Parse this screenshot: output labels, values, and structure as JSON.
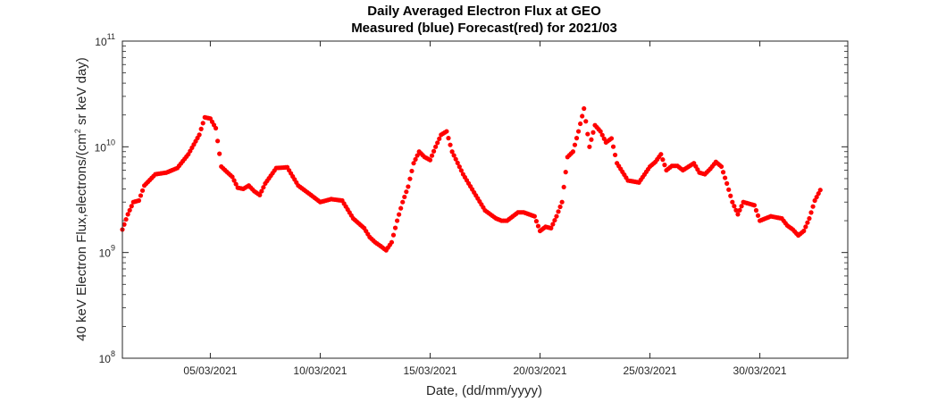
{
  "chart_data": {
    "type": "scatter",
    "title": "Daily Averaged Electron Flux at GEO",
    "subtitle": "Measured (blue) Forecast(red) for 2021/03",
    "xlabel": "Date, (dd/mm/yyyy)",
    "ylabel_main": "40 keV Electron Flux,electrons/(cm",
    "ylabel_sup": "2",
    "ylabel_tail": " sr keV day)",
    "xlim": [
      "2021-03-01T00:00",
      "2021-04-03T00:00"
    ],
    "ylim": [
      100000000,
      100000000000
    ],
    "yscale": "log",
    "grid": false,
    "x_ticks": [
      {
        "date": "2021-03-05",
        "label": "05/03/2021"
      },
      {
        "date": "2021-03-10",
        "label": "10/03/2021"
      },
      {
        "date": "2021-03-15",
        "label": "15/03/2021"
      },
      {
        "date": "2021-03-20",
        "label": "20/03/2021"
      },
      {
        "date": "2021-03-25",
        "label": "25/03/2021"
      },
      {
        "date": "2021-03-30",
        "label": "30/03/2021"
      }
    ],
    "y_ticks": [
      {
        "value": 100000000,
        "base": "10",
        "exp": "8"
      },
      {
        "value": 1000000000,
        "base": "10",
        "exp": "9"
      },
      {
        "value": 10000000000,
        "base": "10",
        "exp": "10"
      },
      {
        "value": 100000000000,
        "base": "10",
        "exp": "11"
      }
    ],
    "series": [
      {
        "color": "#ff0000",
        "x": [
          "2021-03-01T00:00",
          "2021-03-01T06:00",
          "2021-03-01T12:00",
          "2021-03-01T18:00",
          "2021-03-02T00:00",
          "2021-03-02T12:00",
          "2021-03-03T00:00",
          "2021-03-03T12:00",
          "2021-03-04T00:00",
          "2021-03-04T12:00",
          "2021-03-04T18:00",
          "2021-03-05T00:00",
          "2021-03-05T06:00",
          "2021-03-05T12:00",
          "2021-03-05T18:00",
          "2021-03-06T00:00",
          "2021-03-06T06:00",
          "2021-03-06T12:00",
          "2021-03-06T18:00",
          "2021-03-07T00:00",
          "2021-03-07T06:00",
          "2021-03-07T12:00",
          "2021-03-08T00:00",
          "2021-03-08T12:00",
          "2021-03-09T00:00",
          "2021-03-09T12:00",
          "2021-03-10T00:00",
          "2021-03-10T12:00",
          "2021-03-11T00:00",
          "2021-03-11T12:00",
          "2021-03-12T00:00",
          "2021-03-12T06:00",
          "2021-03-12T12:00",
          "2021-03-12T18:00",
          "2021-03-13T00:00",
          "2021-03-13T06:00",
          "2021-03-13T12:00",
          "2021-03-13T18:00",
          "2021-03-14T00:00",
          "2021-03-14T06:00",
          "2021-03-14T12:00",
          "2021-03-14T18:00",
          "2021-03-15T00:00",
          "2021-03-15T06:00",
          "2021-03-15T12:00",
          "2021-03-15T18:00",
          "2021-03-16T00:00",
          "2021-03-16T12:00",
          "2021-03-17T00:00",
          "2021-03-17T12:00",
          "2021-03-18T00:00",
          "2021-03-18T06:00",
          "2021-03-18T12:00",
          "2021-03-19T00:00",
          "2021-03-19T06:00",
          "2021-03-19T12:00",
          "2021-03-19T18:00",
          "2021-03-20T00:00",
          "2021-03-20T06:00",
          "2021-03-20T12:00",
          "2021-03-20T18:00",
          "2021-03-21T00:00",
          "2021-03-21T06:00",
          "2021-03-21T12:00",
          "2021-03-21T18:00",
          "2021-03-22T00:00",
          "2021-03-22T06:00",
          "2021-03-22T12:00",
          "2021-03-22T18:00",
          "2021-03-23T00:00",
          "2021-03-23T06:00",
          "2021-03-23T12:00",
          "2021-03-24T00:00",
          "2021-03-24T12:00",
          "2021-03-25T00:00",
          "2021-03-25T06:00",
          "2021-03-25T12:00",
          "2021-03-25T18:00",
          "2021-03-26T00:00",
          "2021-03-26T06:00",
          "2021-03-26T12:00",
          "2021-03-27T00:00",
          "2021-03-27T06:00",
          "2021-03-27T12:00",
          "2021-03-27T18:00",
          "2021-03-28T00:00",
          "2021-03-28T06:00",
          "2021-03-28T12:00",
          "2021-03-28T18:00",
          "2021-03-29T00:00",
          "2021-03-29T06:00",
          "2021-03-29T12:00",
          "2021-03-29T18:00",
          "2021-03-30T00:00",
          "2021-03-30T12:00",
          "2021-03-31T00:00",
          "2021-03-31T06:00",
          "2021-03-31T12:00",
          "2021-03-31T18:00",
          "2021-04-01T00:00",
          "2021-04-01T06:00",
          "2021-04-01T12:00",
          "2021-04-01T18:00"
        ],
        "y": [
          1650000000,
          2300000000,
          3000000000,
          3100000000,
          4300000000,
          5500000000,
          5700000000,
          6300000000,
          8500000000,
          13000000000,
          19000000000,
          18500000000,
          15000000000,
          6500000000,
          5800000000,
          5200000000,
          4100000000,
          4000000000,
          4300000000,
          3800000000,
          3500000000,
          4500000000,
          6300000000,
          6400000000,
          4300000000,
          3600000000,
          3000000000,
          3200000000,
          3100000000,
          2100000000,
          1700000000,
          1400000000,
          1250000000,
          1150000000,
          1050000000,
          1250000000,
          2000000000,
          3000000000,
          4200000000,
          7000000000,
          9000000000,
          8000000000,
          7500000000,
          10000000000,
          13000000000,
          14000000000,
          9000000000,
          5500000000,
          3700000000,
          2500000000,
          2100000000,
          2000000000,
          2000000000,
          2400000000,
          2400000000,
          2300000000,
          2200000000,
          1600000000,
          1750000000,
          1700000000,
          2200000000,
          3000000000,
          8000000000,
          9000000000,
          14000000000,
          23000000000,
          10000000000,
          16000000000,
          14000000000,
          11000000000,
          12000000000,
          7000000000,
          4800000000,
          4600000000,
          6500000000,
          7200000000,
          8500000000,
          6000000000,
          6600000000,
          6600000000,
          6000000000,
          7000000000,
          5700000000,
          5500000000,
          6200000000,
          7200000000,
          6500000000,
          4500000000,
          3000000000,
          2300000000,
          3000000000,
          2900000000,
          2800000000,
          2000000000,
          2200000000,
          2100000000,
          1800000000,
          1650000000,
          1450000000,
          1600000000,
          2100000000,
          3100000000,
          3900000000
        ]
      }
    ]
  }
}
